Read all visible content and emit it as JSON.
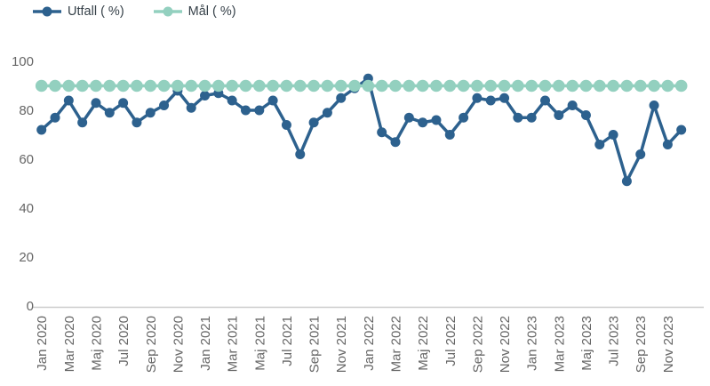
{
  "chart_data": {
    "type": "line",
    "title": "",
    "xlabel": "",
    "ylabel": "",
    "ylim": [
      0,
      100
    ],
    "yticks": [
      0,
      20,
      40,
      60,
      80,
      100
    ],
    "grid": false,
    "legend_position": "top-left",
    "x_tick_every": 2,
    "x": [
      "Jan 2020",
      "Feb 2020",
      "Mar 2020",
      "Apr 2020",
      "Maj 2020",
      "Jun 2020",
      "Jul 2020",
      "Aug 2020",
      "Sep 2020",
      "Okt 2020",
      "Nov 2020",
      "Dec 2020",
      "Jan 2021",
      "Feb 2021",
      "Mar 2021",
      "Apr 2021",
      "Maj 2021",
      "Jun 2021",
      "Jul 2021",
      "Aug 2021",
      "Sep 2021",
      "Okt 2021",
      "Nov 2021",
      "Dec 2021",
      "Jan 2022",
      "Feb 2022",
      "Mar 2022",
      "Apr 2022",
      "Maj 2022",
      "Jun 2022",
      "Jul 2022",
      "Aug 2022",
      "Sep 2022",
      "Okt 2022",
      "Nov 2022",
      "Dec 2022",
      "Jan 2023",
      "Feb 2023",
      "Mar 2023",
      "Apr 2023",
      "Maj 2023",
      "Jun 2023",
      "Jul 2023",
      "Aug 2023",
      "Sep 2023",
      "Okt 2023",
      "Nov 2023",
      "Dec 2023"
    ],
    "series": [
      {
        "name": "Utfall ( %)",
        "color": "#2d618e",
        "values": [
          72,
          77,
          84,
          75,
          83,
          79,
          83,
          75,
          79,
          82,
          88,
          81,
          86,
          87,
          84,
          80,
          80,
          84,
          74,
          62,
          75,
          79,
          85,
          89,
          93,
          71,
          67,
          77,
          75,
          76,
          70,
          77,
          85,
          84,
          85,
          77,
          77,
          84,
          78,
          82,
          78,
          66,
          70,
          51,
          62,
          82,
          66,
          72
        ]
      },
      {
        "name": "Mål ( %)",
        "color": "#93d0bf",
        "values": [
          90,
          90,
          90,
          90,
          90,
          90,
          90,
          90,
          90,
          90,
          90,
          90,
          90,
          90,
          90,
          90,
          90,
          90,
          90,
          90,
          90,
          90,
          90,
          90,
          90,
          90,
          90,
          90,
          90,
          90,
          90,
          90,
          90,
          90,
          90,
          90,
          90,
          90,
          90,
          90,
          90,
          90,
          90,
          90,
          90,
          90,
          90,
          90
        ]
      }
    ]
  },
  "colors": {
    "axis_line": "#cccccc",
    "tick_text": "#666666",
    "legend_text": "#37424a"
  }
}
